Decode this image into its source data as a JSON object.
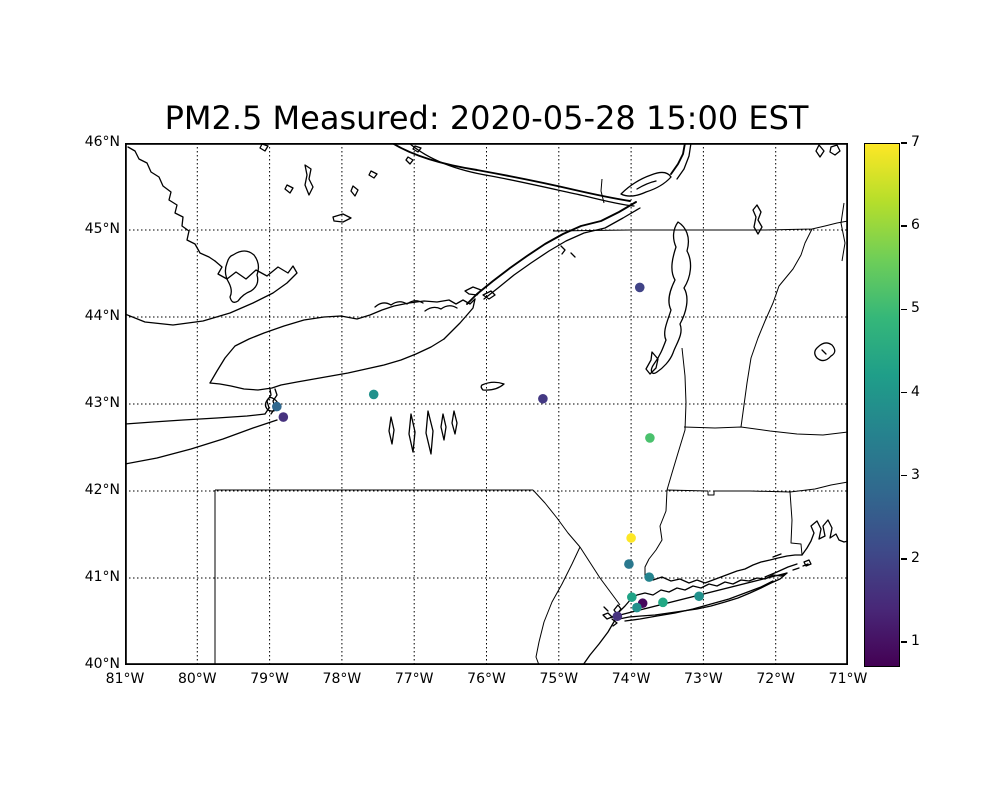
{
  "figure": {
    "title": "PM2.5 Measured: 2020-05-28 15:00 EST",
    "background": "#ffffff"
  },
  "chart_data": {
    "type": "scatter",
    "title": "PM2.5 Measured: 2020-05-28 15:00 EST",
    "map_region": "New York State / Lake Ontario / northeastern US and southern Canada",
    "grid": "dotted",
    "axes_extent": {
      "lon_west_deg": 81,
      "lon_east_deg": 71,
      "lat_south_deg": 40,
      "lat_north_deg": 46
    },
    "x_axis": {
      "ticks_deg_west": [
        81,
        80,
        79,
        78,
        77,
        76,
        75,
        74,
        73,
        72,
        71
      ],
      "tick_labels": [
        "81°W",
        "80°W",
        "79°W",
        "78°W",
        "77°W",
        "76°W",
        "75°W",
        "74°W",
        "73°W",
        "72°W",
        "71°W"
      ]
    },
    "y_axis": {
      "ticks_deg_north": [
        46,
        45,
        44,
        43,
        42,
        41,
        40
      ],
      "tick_labels": [
        "46°N",
        "45°N",
        "44°N",
        "43°N",
        "42°N",
        "41°N",
        "40°N"
      ]
    },
    "colorbar": {
      "colormap": "viridis",
      "vmin": 0.7,
      "vmax": 7,
      "ticks": [
        7,
        6,
        5,
        4,
        3,
        2,
        1
      ],
      "stops_top_to_bottom": [
        "#fde725",
        "#b5de2b",
        "#6ece58",
        "#35b779",
        "#1f9e89",
        "#26828e",
        "#31688e",
        "#3e4a89",
        "#482878",
        "#440154"
      ]
    },
    "stations": [
      {
        "lon_w": 73.88,
        "lat_n": 44.34,
        "value": 2.1,
        "color": "#414487"
      },
      {
        "lon_w": 77.56,
        "lat_n": 43.11,
        "value": 3.9,
        "color": "#21918c"
      },
      {
        "lon_w": 75.22,
        "lat_n": 43.06,
        "value": 1.8,
        "color": "#443983"
      },
      {
        "lon_w": 78.9,
        "lat_n": 42.97,
        "value": 2.9,
        "color": "#31688e"
      },
      {
        "lon_w": 78.81,
        "lat_n": 42.85,
        "value": 1.5,
        "color": "#46327e"
      },
      {
        "lon_w": 73.74,
        "lat_n": 42.61,
        "value": 5.3,
        "color": "#4ac16d"
      },
      {
        "lon_w": 74.0,
        "lat_n": 41.46,
        "value": 7.0,
        "color": "#fde725"
      },
      {
        "lon_w": 74.03,
        "lat_n": 41.16,
        "value": 3.4,
        "color": "#2a788e"
      },
      {
        "lon_w": 73.75,
        "lat_n": 41.01,
        "value": 3.7,
        "color": "#25848e"
      },
      {
        "lon_w": 73.99,
        "lat_n": 40.78,
        "value": 4.4,
        "color": "#20a386"
      },
      {
        "lon_w": 73.84,
        "lat_n": 40.71,
        "value": 0.9,
        "color": "#46085c"
      },
      {
        "lon_w": 73.92,
        "lat_n": 40.66,
        "value": 3.9,
        "color": "#21918c"
      },
      {
        "lon_w": 73.56,
        "lat_n": 40.72,
        "value": 4.5,
        "color": "#22a884"
      },
      {
        "lon_w": 74.19,
        "lat_n": 40.56,
        "value": 1.5,
        "color": "#46327e"
      },
      {
        "lon_w": 73.06,
        "lat_n": 40.79,
        "value": 3.9,
        "color": "#21918c"
      }
    ]
  }
}
